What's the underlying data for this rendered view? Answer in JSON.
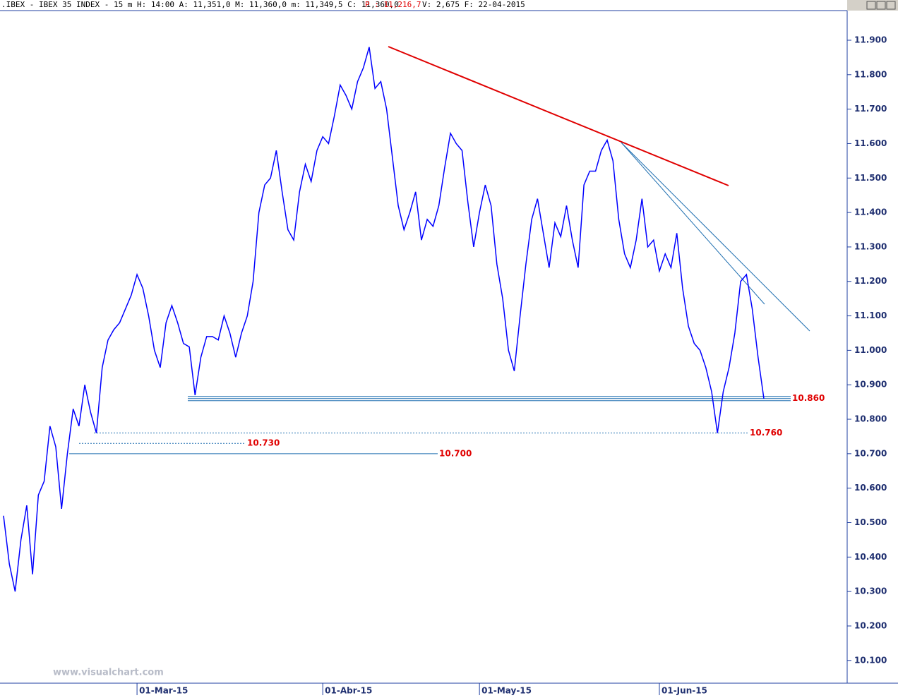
{
  "chart_data": {
    "type": "line",
    "title": ".IBEX - IBEX 35 INDEX -  15 m H: 14:00 A: 11,351,0 M: 11,360,0 m: 11,349,5 C: 11,360,0",
    "subtitle_red": "P : 11,216,7",
    "subtitle_right": "V: 2,675 F: 22-04-2015",
    "watermark": "www.visualchart.com",
    "categories": [
      null,
      null,
      null,
      null,
      null,
      null,
      null,
      null,
      null,
      null,
      null,
      null,
      null,
      null,
      null,
      null,
      null,
      null,
      null,
      null,
      null,
      null,
      null,
      "01-Mar-15",
      null,
      null,
      null,
      null,
      null,
      null,
      null,
      null,
      null,
      null,
      null,
      null,
      null,
      null,
      null,
      null,
      null,
      null,
      null,
      null,
      null,
      null,
      null,
      null,
      null,
      null,
      null,
      null,
      null,
      null,
      null,
      "01-Abr-15",
      null,
      null,
      null,
      null,
      null,
      null,
      null,
      null,
      null,
      null,
      null,
      null,
      null,
      null,
      null,
      null,
      null,
      null,
      null,
      null,
      null,
      null,
      null,
      null,
      null,
      null,
      "01-May-15",
      null,
      null,
      null,
      null,
      null,
      null,
      null,
      null,
      null,
      null,
      null,
      null,
      null,
      null,
      null,
      null,
      null,
      null,
      null,
      null,
      null,
      null,
      null,
      null,
      null,
      null,
      null,
      null,
      null,
      null,
      "01-Jun-15",
      null,
      null,
      null,
      null,
      null,
      null,
      null,
      null,
      null,
      null,
      null,
      null,
      null,
      null,
      null,
      null,
      null,
      null
    ],
    "series": [
      {
        "name": "IBEX 35",
        "color": "#0000ff",
        "values": [
          10520,
          10380,
          10300,
          10450,
          10550,
          10350,
          10580,
          10620,
          10780,
          10720,
          10540,
          10700,
          10830,
          10780,
          10900,
          10820,
          10760,
          10950,
          11030,
          11060,
          11080,
          11120,
          11160,
          11220,
          11180,
          11100,
          11000,
          10950,
          11080,
          11130,
          11080,
          11020,
          11010,
          10870,
          10980,
          11040,
          11040,
          11030,
          11100,
          11050,
          10980,
          11050,
          11100,
          11200,
          11400,
          11480,
          11500,
          11580,
          11460,
          11350,
          11320,
          11460,
          11540,
          11490,
          11580,
          11620,
          11600,
          11680,
          11770,
          11740,
          11700,
          11780,
          11820,
          11880,
          11760,
          11780,
          11700,
          11560,
          11420,
          11350,
          11400,
          11460,
          11320,
          11380,
          11360,
          11420,
          11530,
          11630,
          11600,
          11580,
          11430,
          11300,
          11400,
          11480,
          11420,
          11250,
          11150,
          11000,
          10940,
          11100,
          11250,
          11380,
          11440,
          11340,
          11240,
          11370,
          11330,
          11420,
          11320,
          11240,
          11480,
          11520,
          11520,
          11580,
          11610,
          11550,
          11380,
          11280,
          11240,
          11320,
          11440,
          11300,
          11320,
          11230,
          11280,
          11240,
          11340,
          11180,
          11070,
          11020,
          11000,
          10950,
          10880,
          10760,
          10880,
          10950,
          11050,
          11200,
          11220,
          11120,
          10980,
          10860
        ]
      }
    ],
    "ylim": [
      10034,
      11986
    ],
    "yticks": [
      {
        "value": 10100,
        "label": "10.100"
      },
      {
        "value": 10200,
        "label": "10.200"
      },
      {
        "value": 10300,
        "label": "10.300"
      },
      {
        "value": 10400,
        "label": "10.400"
      },
      {
        "value": 10500,
        "label": "10.500"
      },
      {
        "value": 10600,
        "label": "10.600"
      },
      {
        "value": 10700,
        "label": "10.700"
      },
      {
        "value": 10800,
        "label": "10.800"
      },
      {
        "value": 10900,
        "label": "10.900"
      },
      {
        "value": 11000,
        "label": "11.000"
      },
      {
        "value": 11100,
        "label": "11.100"
      },
      {
        "value": 11200,
        "label": "11.200"
      },
      {
        "value": 11300,
        "label": "11.300"
      },
      {
        "value": 11400,
        "label": "11.400"
      },
      {
        "value": 11500,
        "label": "11.500"
      },
      {
        "value": 11600,
        "label": "11.600"
      },
      {
        "value": 11700,
        "label": "11.700"
      },
      {
        "value": 11800,
        "label": "11.800"
      },
      {
        "value": 11900,
        "label": "11.900"
      }
    ],
    "levels": [
      {
        "value": 10860,
        "label": "10.860",
        "style": "double"
      },
      {
        "value": 10760,
        "label": "10.760",
        "style": "dashed"
      },
      {
        "value": 10730,
        "label": "10.730",
        "style": "dashed"
      },
      {
        "value": 10700,
        "label": "10.700",
        "style": "solid"
      }
    ],
    "level_color": "#1f6fb0",
    "label_color": "#e00000",
    "axis_color": "#1f3fa0"
  }
}
